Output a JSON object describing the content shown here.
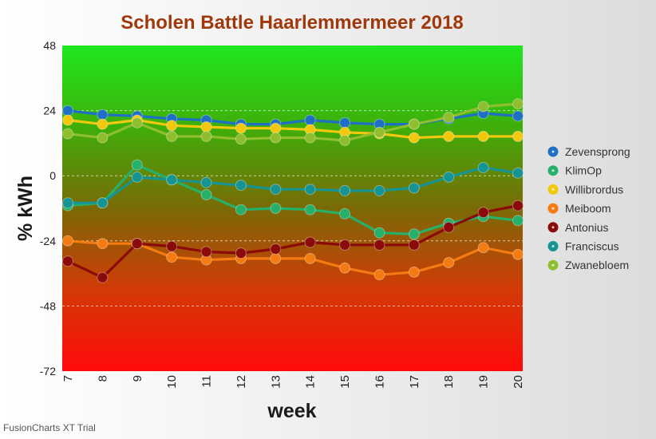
{
  "chart_data": {
    "type": "line",
    "title": "Scholen Battle Haarlemmermeer 2018",
    "xlabel": "week",
    "ylabel": "% kWh",
    "x": [
      7,
      8,
      9,
      10,
      11,
      12,
      13,
      14,
      15,
      16,
      17,
      18,
      19,
      20
    ],
    "ylim": [
      -72,
      48
    ],
    "yticks": [
      48,
      24,
      0,
      -24,
      -48,
      -72
    ],
    "grid": "horizontal dashed",
    "legend": "right",
    "background": "vertical gradient green to red",
    "series": [
      {
        "name": "Zevensprong",
        "color": "#1f6fc5",
        "values": [
          24,
          22.5,
          22,
          21,
          20.5,
          19,
          19,
          20.5,
          19.5,
          19,
          19,
          21,
          23,
          22
        ]
      },
      {
        "name": "KlimOp",
        "color": "#26b06a",
        "values": [
          -11,
          -10,
          4,
          -1.5,
          -7,
          -12.5,
          -12,
          -12.5,
          -14,
          -21,
          -21.5,
          -17.5,
          -15,
          -16.5
        ]
      },
      {
        "name": "Willibrordus",
        "color": "#f2c80f",
        "values": [
          20.5,
          19,
          20.5,
          18.5,
          18,
          17.5,
          17.5,
          17,
          16,
          15.5,
          14,
          14.5,
          14.5,
          14.5
        ]
      },
      {
        "name": "Meiboom",
        "color": "#f47a12",
        "values": [
          -24,
          -25,
          -25,
          -30,
          -31,
          -30.5,
          -30.5,
          -30.5,
          -34,
          -36.5,
          -35.5,
          -32,
          -26.5,
          -29
        ]
      },
      {
        "name": "Antonius",
        "color": "#8b0a0a",
        "values": [
          -31.5,
          -37.5,
          -25,
          -26,
          -28,
          -28.5,
          -27,
          -24.5,
          -25.5,
          -25.5,
          -25.5,
          -19,
          -13.5,
          -11
        ]
      },
      {
        "name": "Franciscus",
        "color": "#169393",
        "values": [
          -10,
          -10,
          -0.5,
          -1.5,
          -2.5,
          -3.5,
          -5,
          -5,
          -5.5,
          -5.5,
          -4.5,
          -0.5,
          3,
          1
        ]
      },
      {
        "name": "Zwanebloem",
        "color": "#8fbe2e",
        "values": [
          15.5,
          14,
          19.5,
          14.5,
          14.5,
          13.5,
          14,
          14,
          13,
          16,
          19,
          21.5,
          25.5,
          26.5
        ]
      }
    ]
  },
  "footer": {
    "watermark": "FusionCharts XT Trial"
  }
}
